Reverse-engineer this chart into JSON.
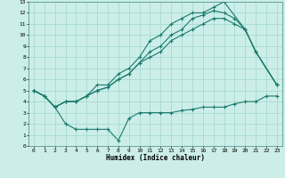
{
  "background_color": "#cceee8",
  "grid_color": "#aaddd5",
  "line_color": "#1a7a6e",
  "xlabel": "Humidex (Indice chaleur)",
  "xlim": [
    -0.5,
    23.5
  ],
  "ylim": [
    0,
    13
  ],
  "xticks": [
    0,
    1,
    2,
    3,
    4,
    5,
    6,
    7,
    8,
    9,
    10,
    11,
    12,
    13,
    14,
    15,
    16,
    17,
    18,
    19,
    20,
    21,
    22,
    23
  ],
  "yticks": [
    0,
    1,
    2,
    3,
    4,
    5,
    6,
    7,
    8,
    9,
    10,
    11,
    12,
    13
  ],
  "lines": [
    {
      "x": [
        0,
        1,
        2,
        3,
        4,
        5,
        6,
        7,
        8,
        9,
        10,
        11,
        12,
        13,
        14,
        15,
        16,
        17,
        18,
        20,
        21,
        23
      ],
      "y": [
        5.0,
        4.5,
        3.5,
        4.0,
        4.0,
        4.5,
        5.5,
        5.5,
        6.5,
        7.0,
        8.0,
        9.5,
        10.0,
        11.0,
        11.5,
        12.0,
        12.0,
        12.5,
        13.0,
        10.5,
        8.5,
        5.5
      ]
    },
    {
      "x": [
        0,
        1,
        2,
        3,
        4,
        5,
        6,
        7,
        8,
        9,
        10,
        11,
        12,
        13,
        14,
        15,
        16,
        17,
        18,
        19,
        20,
        21,
        23
      ],
      "y": [
        5.0,
        4.5,
        3.5,
        4.0,
        4.0,
        4.5,
        5.0,
        5.3,
        6.0,
        6.5,
        7.5,
        8.5,
        9.0,
        10.0,
        10.5,
        11.5,
        11.8,
        12.2,
        12.0,
        11.5,
        10.5,
        8.5,
        5.5
      ]
    },
    {
      "x": [
        0,
        1,
        2,
        3,
        4,
        5,
        6,
        7,
        8,
        9,
        10,
        11,
        12,
        13,
        14,
        15,
        16,
        17,
        18,
        19,
        20,
        21,
        23
      ],
      "y": [
        5.0,
        4.5,
        3.5,
        4.0,
        4.0,
        4.5,
        5.0,
        5.3,
        6.0,
        6.5,
        7.5,
        8.0,
        8.5,
        9.5,
        10.0,
        10.5,
        11.0,
        11.5,
        11.5,
        11.0,
        10.5,
        8.5,
        5.5
      ]
    },
    {
      "x": [
        0,
        1,
        2,
        3,
        4,
        5,
        6,
        7,
        8,
        9,
        10,
        11,
        12,
        13,
        14,
        15,
        16,
        17,
        18,
        19,
        20,
        21,
        22,
        23
      ],
      "y": [
        5.0,
        4.5,
        3.5,
        2.0,
        1.5,
        1.5,
        1.5,
        1.5,
        0.5,
        2.5,
        3.0,
        3.0,
        3.0,
        3.0,
        3.2,
        3.3,
        3.5,
        3.5,
        3.5,
        3.8,
        4.0,
        4.0,
        4.5,
        4.5
      ]
    }
  ]
}
